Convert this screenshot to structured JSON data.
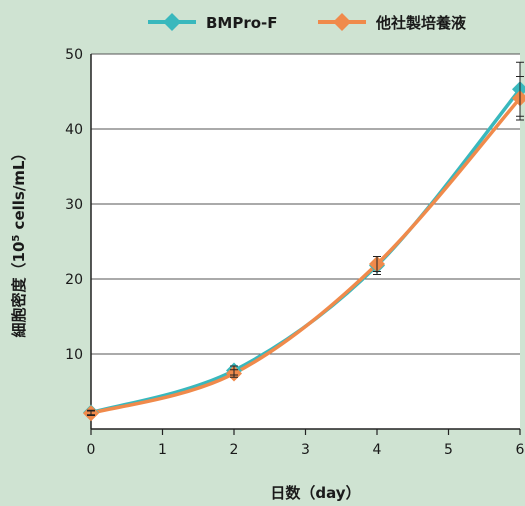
{
  "chart_data": {
    "type": "line",
    "x": [
      0,
      2,
      4,
      6
    ],
    "xlim": [
      0,
      6
    ],
    "xticks": [
      0,
      1,
      2,
      3,
      4,
      5,
      6
    ],
    "ylim": [
      0,
      50
    ],
    "yticks": [
      10,
      20,
      30,
      40,
      50
    ],
    "xlabel": "日数（day）",
    "ylabel": "細胞密度（10⁵ cells/mL）",
    "grid": true,
    "legend_position": "top",
    "series": [
      {
        "name": "BMPro-F",
        "color": "#39b8bd",
        "marker": "diamond",
        "values": [
          2.2,
          7.8,
          21.8,
          45.3
        ],
        "errors": [
          0.3,
          0.6,
          1.2,
          3.6
        ]
      },
      {
        "name": "他社製培養液",
        "color": "#f08a4b",
        "marker": "diamond",
        "values": [
          2.1,
          7.4,
          22.0,
          44.1
        ],
        "errors": [
          0.3,
          0.5,
          1.0,
          2.9
        ]
      }
    ]
  }
}
